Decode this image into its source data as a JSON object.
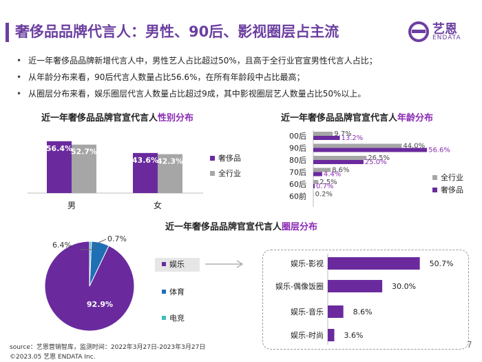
{
  "header": {
    "title": "奢侈品品牌代言人：男性、90后、影视圈层占主流",
    "logo_text": "艺恩",
    "logo_sub": "ENDATA",
    "brand_color": "#6b3fa0"
  },
  "bullets": [
    "近一年奢侈品品牌新增代言人中，男性艺人占比超过50%，且高于全行业官宣男性代言人占比；",
    "从年龄分布来看，90后代言人数量占比56.6%，在所有年龄段中占比最高；",
    "从圈层分布来看，娱乐圈层代言人数量占比超过9成，其中影视圈层艺人数量占比50%以上。"
  ],
  "chart_data": [
    {
      "type": "bar",
      "title_prefix": "近一年奢侈品品牌官宣代言人",
      "title_highlight": "性别分布",
      "categories": [
        "男",
        "女"
      ],
      "series": [
        {
          "name": "奢侈品",
          "values": [
            56.4,
            43.6
          ],
          "labels": [
            "56.4%",
            "43.6%"
          ],
          "color": "#6a2a9e"
        },
        {
          "name": "全行业",
          "values": [
            52.7,
            42.3
          ],
          "labels": [
            "52.7%",
            "42.3%"
          ],
          "color": "#a6a6a6"
        }
      ],
      "ylim": [
        0,
        60
      ],
      "legend": "right"
    },
    {
      "type": "bar",
      "orientation": "horizontal",
      "title_prefix": "近一年奢侈品品牌官宣代言人",
      "title_highlight": "年龄分布",
      "categories": [
        "00后",
        "90后",
        "80后",
        "70后",
        "60后",
        "60前"
      ],
      "series": [
        {
          "name": "全行业",
          "values": [
            9.7,
            44.0,
            26.5,
            8.6,
            2.5,
            0.2
          ],
          "labels": [
            "9.7%",
            "44.0%",
            "26.5%",
            "8.6%",
            "2.5%",
            "0.2%"
          ],
          "color": "#a6a6a6"
        },
        {
          "name": "奢侈品",
          "values": [
            13.2,
            56.6,
            25.0,
            4.4,
            0.7,
            0.0
          ],
          "labels": [
            "13.2%",
            "56.6%",
            "25.0%",
            "4.4%",
            "0.7%",
            ""
          ],
          "color": "#6a2a9e"
        }
      ],
      "xlim": [
        0,
        60
      ],
      "legend": "right"
    },
    {
      "type": "pie",
      "title_prefix": "近一年奢侈品品牌官宣代言人",
      "title_highlight": "圈层分布",
      "slices": [
        {
          "name": "娱乐",
          "value": 92.9,
          "label": "92.9%",
          "color": "#6a2a9e"
        },
        {
          "name": "体育",
          "value": 6.4,
          "label": "6.4%",
          "color": "#1f6fb5"
        },
        {
          "name": "电竞",
          "value": 0.7,
          "label": "0.7%",
          "color": "#3bbfbf"
        }
      ],
      "legend": "right"
    },
    {
      "type": "bar",
      "orientation": "horizontal",
      "categories": [
        "娱乐-影视",
        "娱乐-偶像饭圈",
        "娱乐-音乐",
        "娱乐-时尚"
      ],
      "values": [
        50.7,
        30.0,
        8.6,
        3.6
      ],
      "labels": [
        "50.7%",
        "30.0%",
        "8.6%",
        "3.6%"
      ],
      "color": "#6a2a9e",
      "xlim": [
        0,
        55
      ]
    }
  ],
  "footer": {
    "source": "source：艺恩营销智库，监测时间：2022年3月27日-2023年3月27日",
    "copyright": "©2023.05 艺恩 ENDATA Inc.",
    "page": "7"
  }
}
